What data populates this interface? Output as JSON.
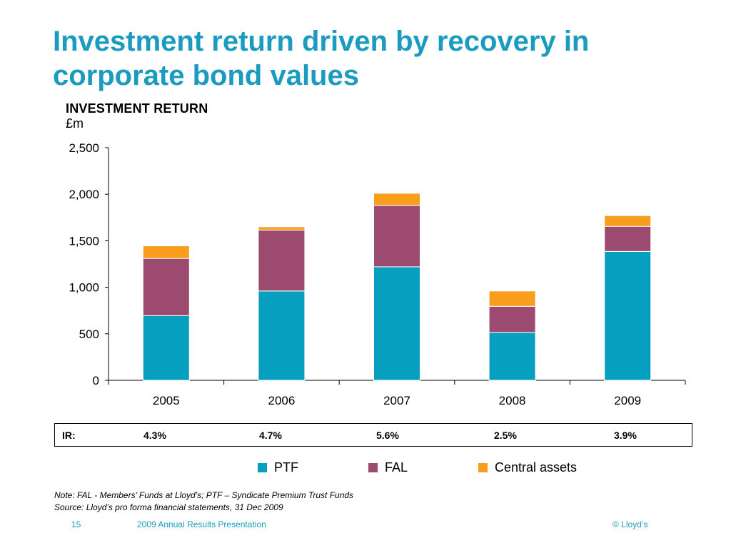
{
  "slide": {
    "title": "Investment return driven by recovery in corporate bond values",
    "note": "Note: FAL -  Members’ Funds at Lloyd’s; PTF – Syndicate Premium Trust Funds",
    "source": "Source: Lloyd’s pro forma financial statements, 31 Dec 2009",
    "page_number": "15",
    "footer_text": "2009 Annual Results Presentation",
    "copyright": "© Lloyd’s"
  },
  "ir_row": {
    "label": "IR:",
    "values": [
      "4.3%",
      "4.7%",
      "5.6%",
      "2.5%",
      "3.9%"
    ]
  },
  "chart_data": {
    "type": "bar",
    "stacked": true,
    "title": "INVESTMENT RETURN",
    "ylabel": "£m",
    "categories": [
      "2005",
      "2006",
      "2007",
      "2008",
      "2009"
    ],
    "ylim": [
      0,
      2500
    ],
    "yticks": [
      0,
      500,
      1000,
      1500,
      2000,
      2500
    ],
    "ytick_labels": [
      "0",
      "500",
      "1,000",
      "1,500",
      "2,000",
      "2,500"
    ],
    "series": [
      {
        "name": "PTF",
        "color": "#069fbf",
        "values": [
          695,
          960,
          1220,
          515,
          1385
        ]
      },
      {
        "name": "FAL",
        "color": "#9c4a6f",
        "values": [
          615,
          655,
          660,
          280,
          270
        ]
      },
      {
        "name": "Central assets",
        "color": "#f99d1c",
        "values": [
          135,
          35,
          130,
          165,
          115
        ]
      }
    ],
    "legend_position": "bottom",
    "grid": false
  }
}
